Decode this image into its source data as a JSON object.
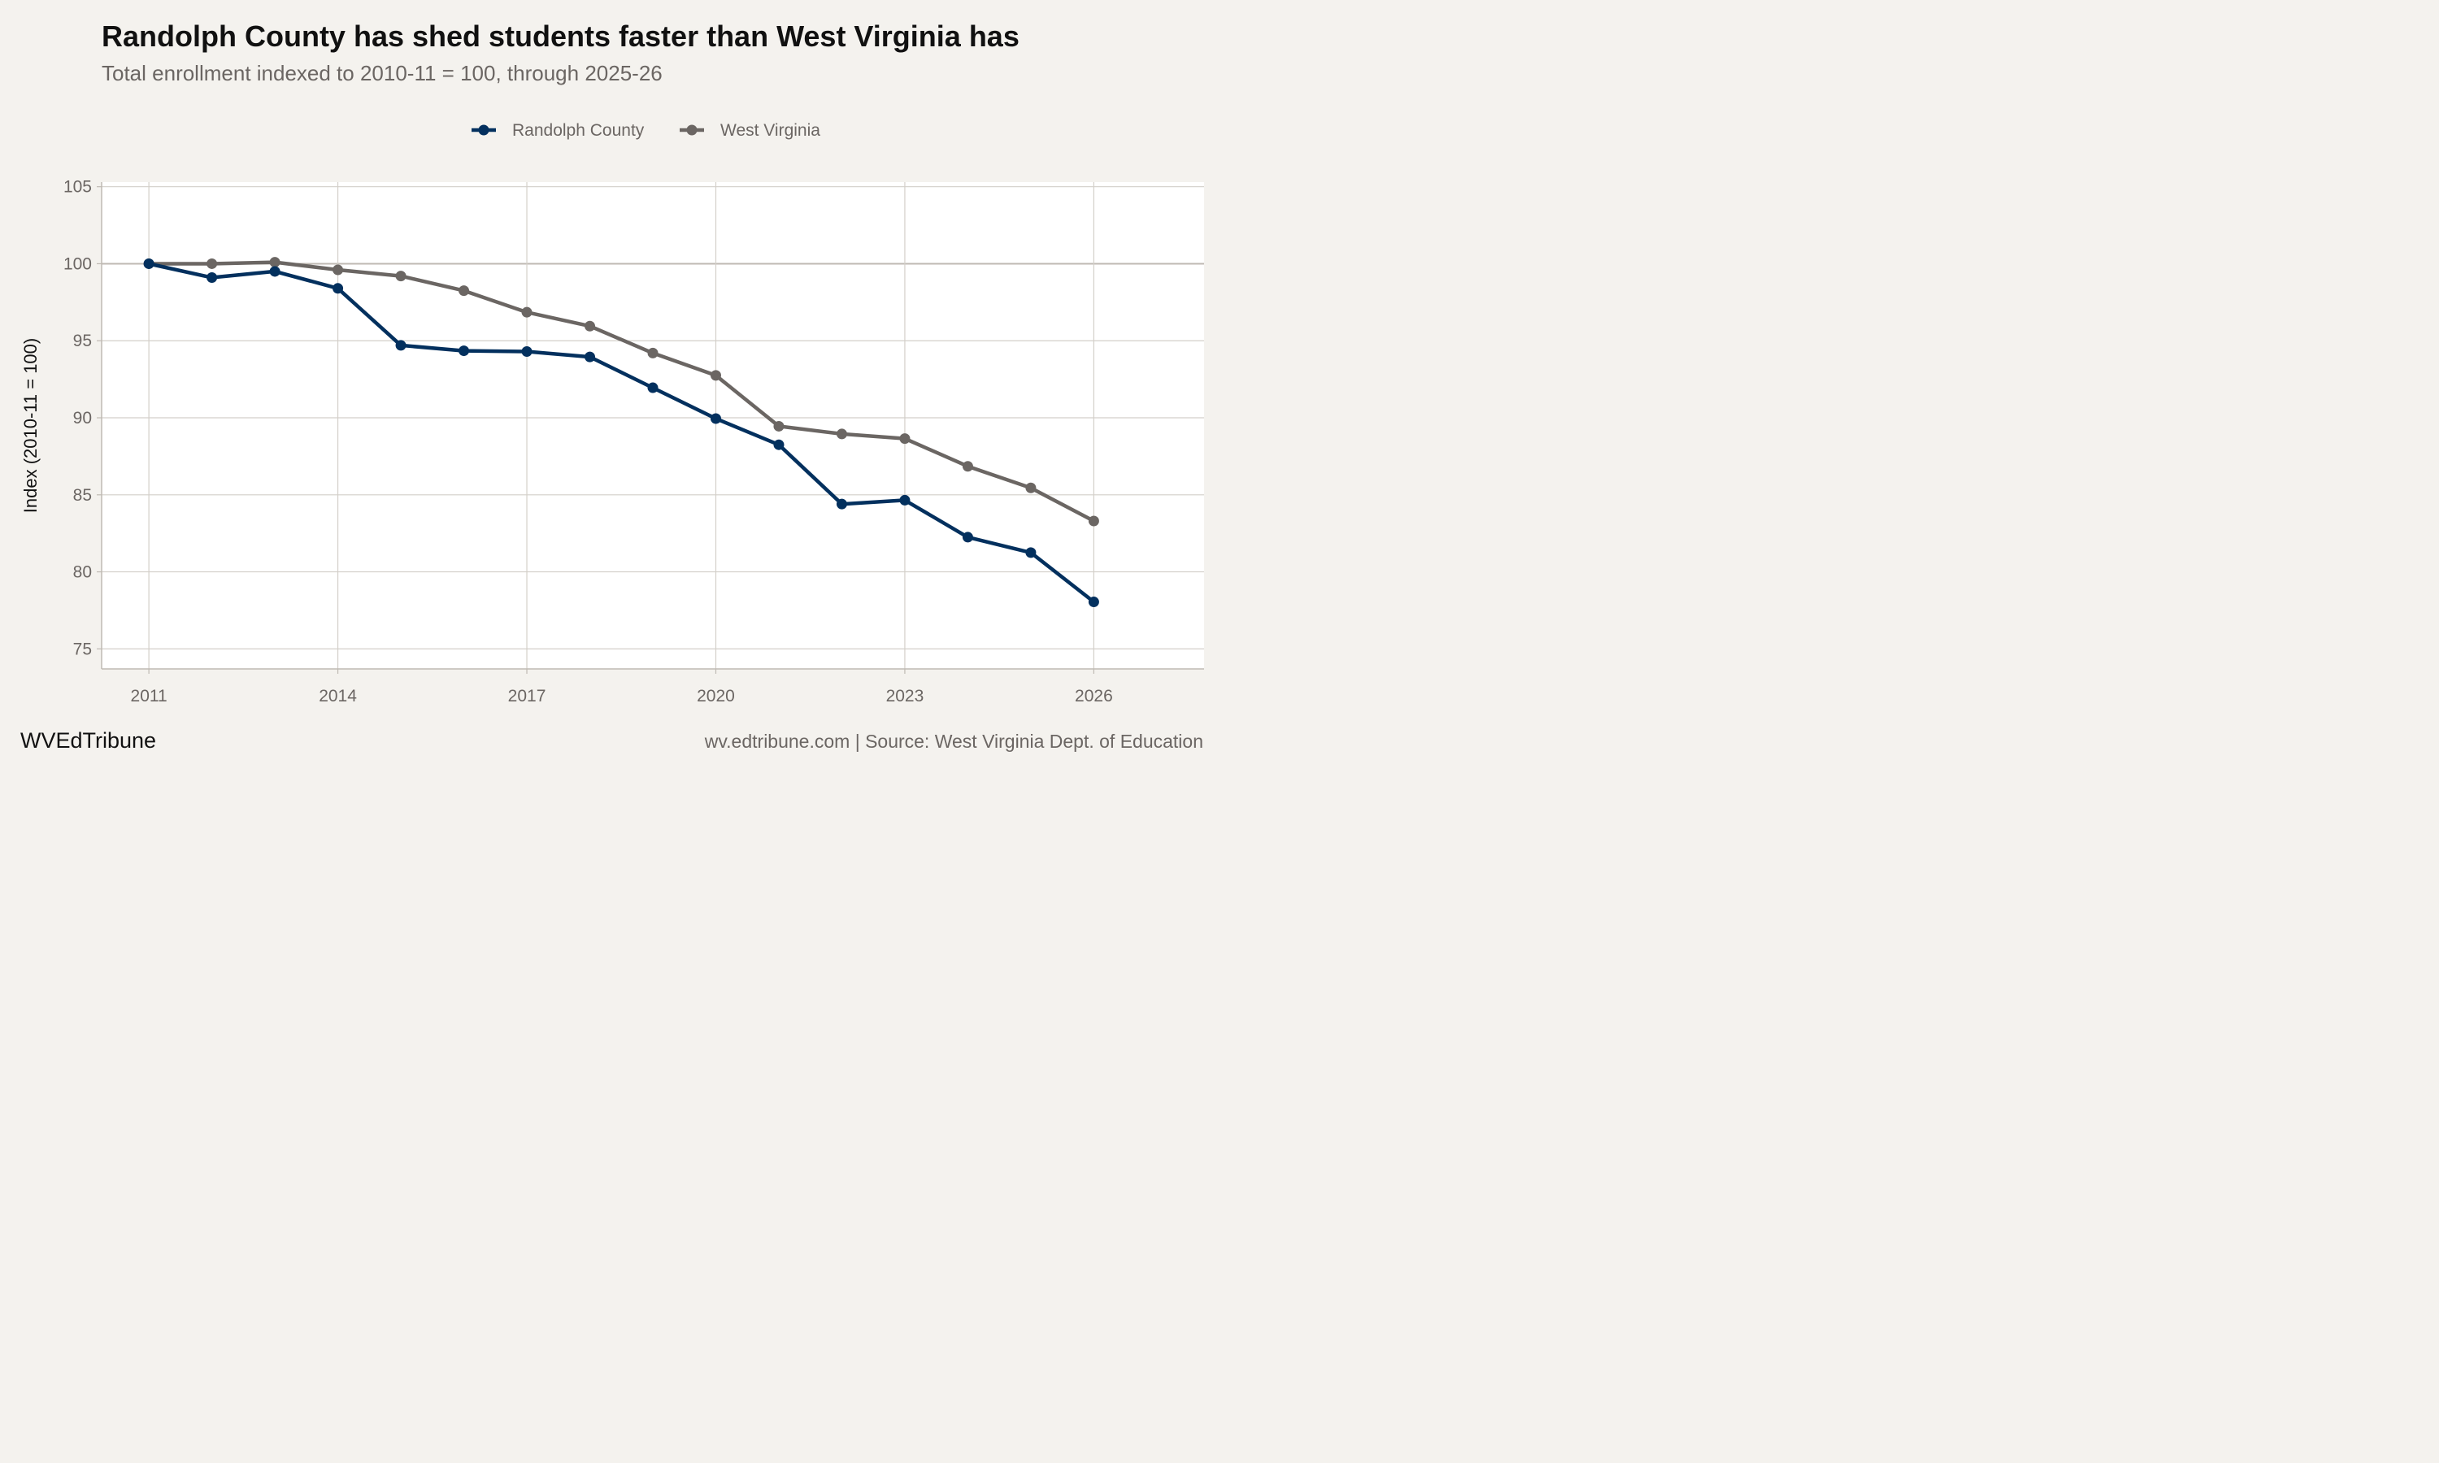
{
  "header": {
    "title": "Randolph County has shed students faster than West Virginia has",
    "subtitle": "Total enrollment indexed to 2010-11 = 100, through 2025-26"
  },
  "footer": {
    "brand": "WVEdTribune",
    "source": "wv.edtribune.com | Source: West Virginia Dept. of Education"
  },
  "chart_data": {
    "type": "line",
    "title": "Randolph County has shed students faster than West Virginia has",
    "subtitle": "Total enrollment indexed to 2010-11 = 100, through 2025-26",
    "xlabel": "",
    "ylabel": "Index (2010-11 = 100)",
    "x": [
      2011,
      2012,
      2013,
      2014,
      2015,
      2016,
      2017,
      2018,
      2019,
      2020,
      2021,
      2022,
      2023,
      2024,
      2025,
      2026
    ],
    "xlim": [
      2010.25,
      2027.75
    ],
    "ylim": [
      73.7,
      105.3
    ],
    "xticks": [
      2011,
      2014,
      2017,
      2020,
      2023,
      2026
    ],
    "yticks": [
      75,
      80,
      85,
      90,
      95,
      100,
      105
    ],
    "reference_line": 100,
    "grid": true,
    "legend_position": "top-center",
    "series": [
      {
        "name": "Randolph County",
        "color": "#03305e",
        "values": [
          100,
          99.1,
          99.5,
          98.4,
          94.7,
          94.35,
          94.3,
          93.95,
          91.95,
          89.95,
          88.25,
          84.4,
          84.65,
          82.25,
          81.25,
          78.05
        ]
      },
      {
        "name": "West Virginia",
        "color": "#6b6663",
        "values": [
          100,
          100,
          100.1,
          99.6,
          99.2,
          98.25,
          96.85,
          95.95,
          94.2,
          92.75,
          89.45,
          88.95,
          88.65,
          86.85,
          85.45,
          83.3
        ]
      }
    ]
  }
}
